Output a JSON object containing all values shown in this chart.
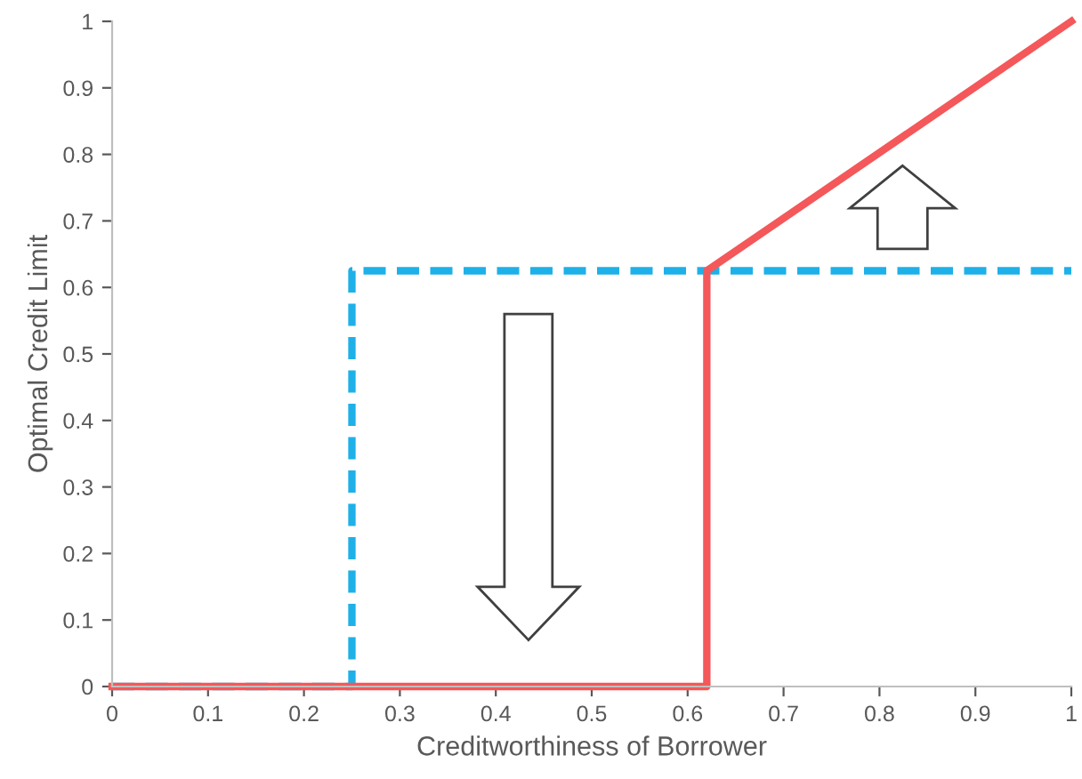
{
  "chart_data": {
    "type": "line",
    "xlabel": "Creditworthiness of Borrower",
    "ylabel": "Optimal Credit Limit",
    "series": [
      {
        "x": [
          0,
          0.25,
          0.25,
          1
        ],
        "values": [
          0,
          0,
          0.625,
          0.625
        ],
        "color": "#1fb0e8",
        "line_style": "dashed"
      },
      {
        "x": [
          0,
          0.62,
          0.62,
          1
        ],
        "values": [
          0,
          0,
          0.625,
          1
        ],
        "color": "#f4585a",
        "line_style": "solid"
      }
    ],
    "xlim": [
      0,
      1
    ],
    "ylim": [
      0,
      1
    ],
    "xticks": [
      0,
      0.1,
      0.2,
      0.3,
      0.4,
      0.5,
      0.6,
      0.7,
      0.8,
      0.9,
      1
    ],
    "yticks": [
      0,
      0.1,
      0.2,
      0.3,
      0.4,
      0.5,
      0.6,
      0.7,
      0.8,
      0.9,
      1
    ],
    "grid": false,
    "marker": "none"
  }
}
